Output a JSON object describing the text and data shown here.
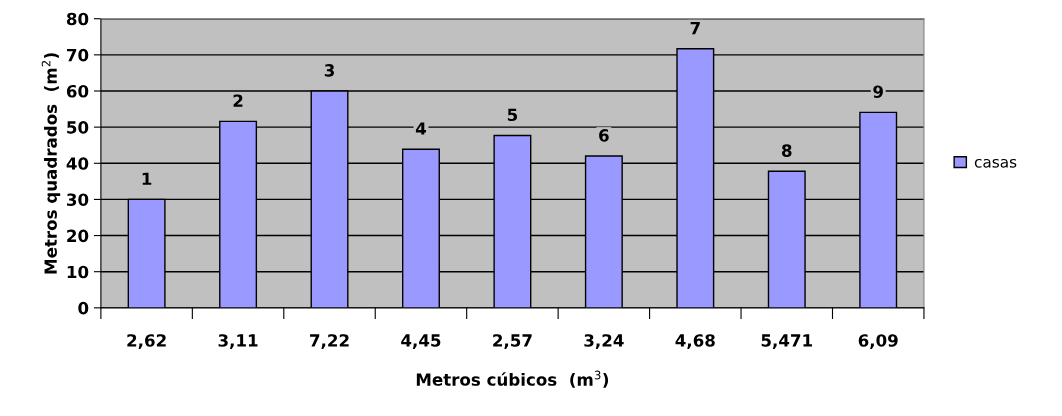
{
  "chart_data": {
    "type": "bar",
    "xlabel": "Metros cúbicos  (m$^{3}$)",
    "ylabel": "Metros quadrados  (m$^{2}$)",
    "categories": [
      "2,62",
      "3,11",
      "7,22",
      "4,45",
      "2,57",
      "3,24",
      "4,68",
      "5,471",
      "6,09"
    ],
    "series": [
      {
        "name": "casas",
        "color": "#9999ff",
        "values": [
          30,
          51.6,
          60,
          43.9,
          47.7,
          42,
          71.7,
          37.8,
          54.1
        ]
      }
    ],
    "annotations": [
      {
        "text": "1",
        "x": "2,62",
        "y": 30
      },
      {
        "text": "2",
        "x": "3,11",
        "y": 51.6
      },
      {
        "text": "3",
        "x": "7,22",
        "y": 60
      },
      {
        "text": "4",
        "x": "4,45",
        "y": 43.9
      },
      {
        "text": "5",
        "x": "2,57",
        "y": 47.7
      },
      {
        "text": "6",
        "x": "3,24",
        "y": 42
      },
      {
        "text": "7",
        "x": "4,68",
        "y": 71.7
      },
      {
        "text": "8",
        "x": "5,471",
        "y": 37.8
      },
      {
        "text": "9",
        "x": "6,09",
        "y": 54.1
      }
    ],
    "ylim": [
      0,
      80
    ],
    "yticks": [
      0,
      10,
      20,
      30,
      40,
      50,
      60,
      70,
      80
    ],
    "grid": "y",
    "legend": "right"
  }
}
